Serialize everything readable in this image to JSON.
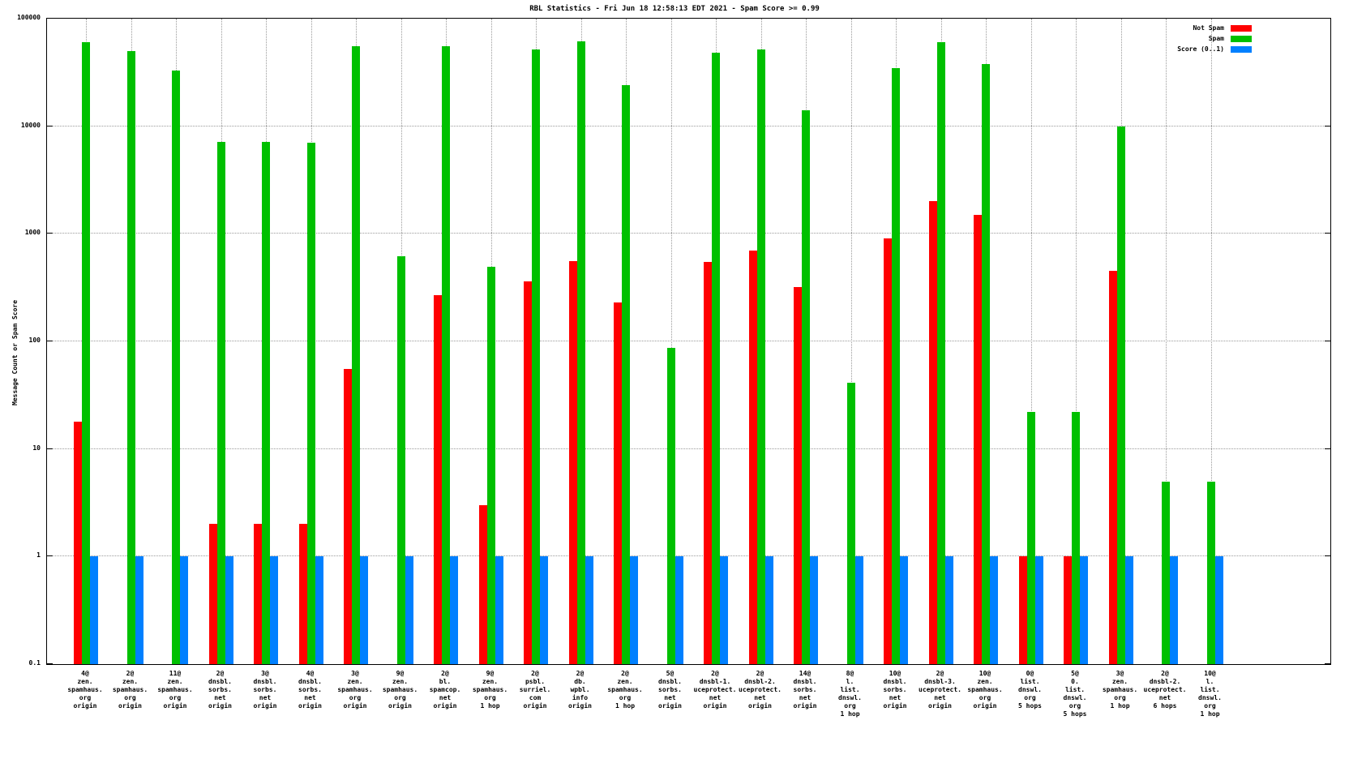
{
  "title": "RBL Statistics - Fri Jun 18 12:58:13 EDT 2021 - Spam Score >= 0.99",
  "ylabel": "Message Count or Spam Score",
  "legend": [
    {
      "label": "Not Spam",
      "color": "#ff0000"
    },
    {
      "label": "Spam",
      "color": "#00c000"
    },
    {
      "label": "Score (0..1)",
      "color": "#0080ff"
    }
  ],
  "chart_data": {
    "type": "bar",
    "scale": "log",
    "title": "RBL Statistics - Fri Jun 18 12:58:13 EDT 2021 - Spam Score >= 0.99",
    "xlabel": "",
    "ylabel": "Message Count or Spam Score",
    "ylim": [
      0.1,
      100000
    ],
    "ytick_labels": [
      "100000",
      "10000",
      "1000",
      "100",
      "10",
      "1",
      "0.1"
    ],
    "grid": true,
    "legend_position": "top-right",
    "categories": [
      [
        "4@",
        "zen.",
        "spamhaus.",
        "org",
        "origin"
      ],
      [
        "2@",
        "zen.",
        "spamhaus.",
        "org",
        "origin"
      ],
      [
        "11@",
        "zen.",
        "spamhaus.",
        "org",
        "origin"
      ],
      [
        "2@",
        "dnsbl.",
        "sorbs.",
        "net",
        "origin"
      ],
      [
        "3@",
        "dnsbl.",
        "sorbs.",
        "net",
        "origin"
      ],
      [
        "4@",
        "dnsbl.",
        "sorbs.",
        "net",
        "origin"
      ],
      [
        "3@",
        "zen.",
        "spamhaus.",
        "org",
        "origin"
      ],
      [
        "9@",
        "zen.",
        "spamhaus.",
        "org",
        "origin"
      ],
      [
        "2@",
        "bl.",
        "spamcop.",
        "net",
        "origin"
      ],
      [
        "9@",
        "zen.",
        "spamhaus.",
        "org",
        "1 hop"
      ],
      [
        "2@",
        "psbl.",
        "surriel.",
        "com",
        "origin"
      ],
      [
        "2@",
        "db.",
        "wpbl.",
        "info",
        "origin"
      ],
      [
        "2@",
        "zen.",
        "spamhaus.",
        "org",
        "1 hop"
      ],
      [
        "5@",
        "dnsbl.",
        "sorbs.",
        "net",
        "origin"
      ],
      [
        "2@",
        "dnsbl-1.",
        "uceprotect.",
        "net",
        "origin"
      ],
      [
        "2@",
        "dnsbl-2.",
        "uceprotect.",
        "net",
        "origin"
      ],
      [
        "14@",
        "dnsbl.",
        "sorbs.",
        "net",
        "origin"
      ],
      [
        "8@",
        "l.",
        "list.",
        "dnswl.",
        "org",
        "1 hop"
      ],
      [
        "10@",
        "dnsbl.",
        "sorbs.",
        "net",
        "origin"
      ],
      [
        "2@",
        "dnsbl-3.",
        "uceprotect.",
        "net",
        "origin"
      ],
      [
        "10@",
        "zen.",
        "spamhaus.",
        "org",
        "origin"
      ],
      [
        "0@",
        "list.",
        "dnswl.",
        "org",
        "5 hops"
      ],
      [
        "5@",
        "0.",
        "list.",
        "dnswl.",
        "org",
        "5 hops"
      ],
      [
        "3@",
        "zen.",
        "spamhaus.",
        "org",
        "1 hop"
      ],
      [
        "2@",
        "dnsbl-2.",
        "uceprotect.",
        "net",
        "6 hops"
      ],
      [
        "10@",
        "l.",
        "list.",
        "dnswl.",
        "org",
        "1 hop"
      ]
    ],
    "series": [
      {
        "name": "Not Spam",
        "color": "#ff0000",
        "values": [
          18,
          0,
          0,
          2,
          2,
          2,
          55,
          0,
          270,
          3,
          360,
          560,
          230,
          0,
          550,
          700,
          320,
          0,
          900,
          2000,
          1500,
          1,
          1,
          450,
          0,
          0
        ]
      },
      {
        "name": "Spam",
        "color": "#00c000",
        "values": [
          60000,
          50000,
          33000,
          7200,
          7200,
          7000,
          55000,
          620,
          55000,
          490,
          52000,
          62000,
          24000,
          87,
          48000,
          52000,
          14000,
          41,
          35000,
          60000,
          38000,
          22,
          22,
          10000,
          5,
          5
        ]
      },
      {
        "name": "Score (0..1)",
        "color": "#0080ff",
        "values": [
          1,
          1,
          1,
          1,
          1,
          1,
          1,
          1,
          1,
          1,
          1,
          1,
          1,
          1,
          1,
          1,
          1,
          1,
          1,
          1,
          1,
          1,
          1,
          1,
          1,
          1
        ]
      }
    ]
  }
}
